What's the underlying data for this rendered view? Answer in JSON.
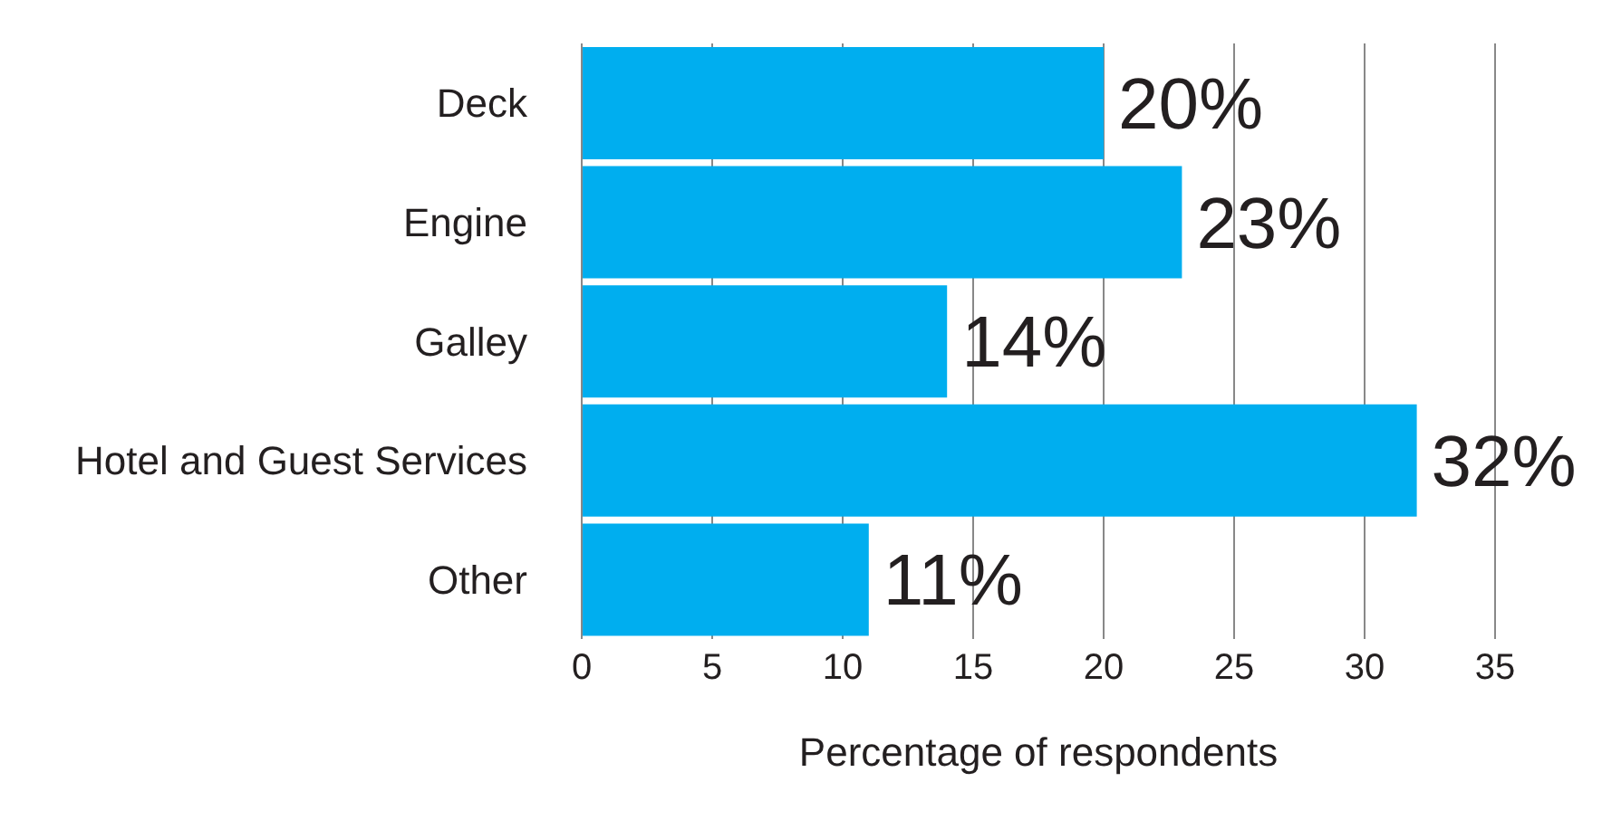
{
  "chart_data": {
    "type": "bar",
    "orientation": "horizontal",
    "xlabel": "Percentage of respondents",
    "categories": [
      "Deck",
      "Engine",
      "Galley",
      "Hotel and Guest Services",
      "Other"
    ],
    "values": [
      20,
      23,
      14,
      32,
      11
    ],
    "value_labels": [
      "20%",
      "23%",
      "14%",
      "32%",
      "11%"
    ],
    "color": "#00aeef",
    "xlim": [
      0,
      35
    ],
    "xticks": [
      0,
      5,
      10,
      15,
      20,
      25,
      30,
      35
    ],
    "grid": "x"
  }
}
